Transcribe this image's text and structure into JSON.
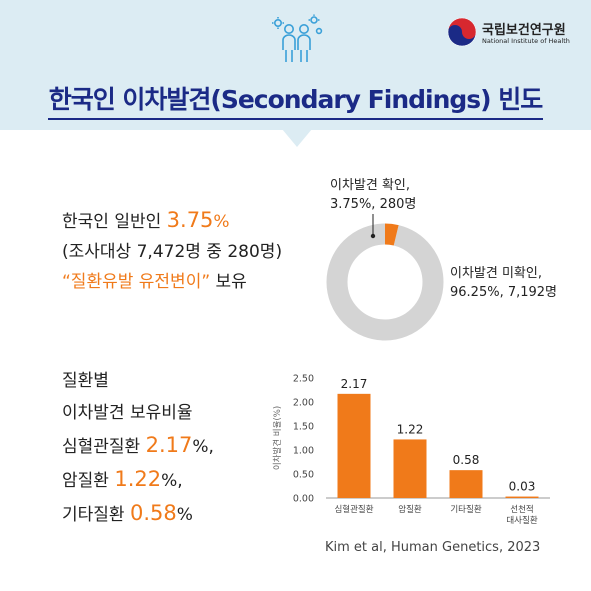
{
  "header": {
    "title": "한국인 이차발견(Secondary Findings) 빈도",
    "logo_kr": "국립보건연구원",
    "logo_en": "National Institute of Health"
  },
  "stat": {
    "line1_prefix": "한국인 일반인 ",
    "line1_value": "3.75",
    "line1_suffix": "%",
    "line2": "(조사대상 7,472명 중 280명)",
    "line3_quote": "“질환유발 유전변이”",
    "line3_suffix": " 보유"
  },
  "donut": {
    "confirmed_label": "이차발견 확인,",
    "confirmed_detail": "3.75%, 280명",
    "unconfirmed_label": "이차발견 미확인,",
    "unconfirmed_detail": "96.25%, 7,192명",
    "confirmed_pct": 3.75,
    "unconfirmed_pct": 96.25,
    "confirmed_color": "#f07a1a",
    "unconfirmed_color": "#d4d4d4"
  },
  "disease": {
    "line1": "질환별",
    "line2": "이차발견 보유비율",
    "line3_prefix": "심혈관질환 ",
    "line3_value": "2.17",
    "line3_suffix": "%,",
    "line4_prefix": "암질환 ",
    "line4_value": "1.22",
    "line4_suffix": "%,",
    "line5_prefix": "기타질환 ",
    "line5_value": "0.58",
    "line5_suffix": "%"
  },
  "chart_data": [
    {
      "type": "pie",
      "categories": [
        "이차발견 확인",
        "이차발견 미확인"
      ],
      "values": [
        3.75,
        96.25
      ],
      "counts": [
        "280명",
        "7,192명"
      ],
      "colors": [
        "#f07a1a",
        "#d4d4d4"
      ]
    },
    {
      "type": "bar",
      "categories": [
        [
          "심혈관질환"
        ],
        [
          "암질환"
        ],
        [
          "기타질환"
        ],
        [
          "선천적",
          "대사질환"
        ]
      ],
      "values": [
        2.17,
        1.22,
        0.58,
        0.03
      ],
      "value_labels": [
        "2.17",
        "1.22",
        "0.58",
        "0.03"
      ],
      "ylabel": "이차발견 비율(%)",
      "ylim": [
        0,
        2.5
      ],
      "yticks": [
        "0.00",
        "0.50",
        "1.00",
        "1.50",
        "2.00",
        "2.50"
      ],
      "bar_color": "#f07a1a"
    }
  ],
  "citation": "Kim et al, Human Genetics, 2023"
}
